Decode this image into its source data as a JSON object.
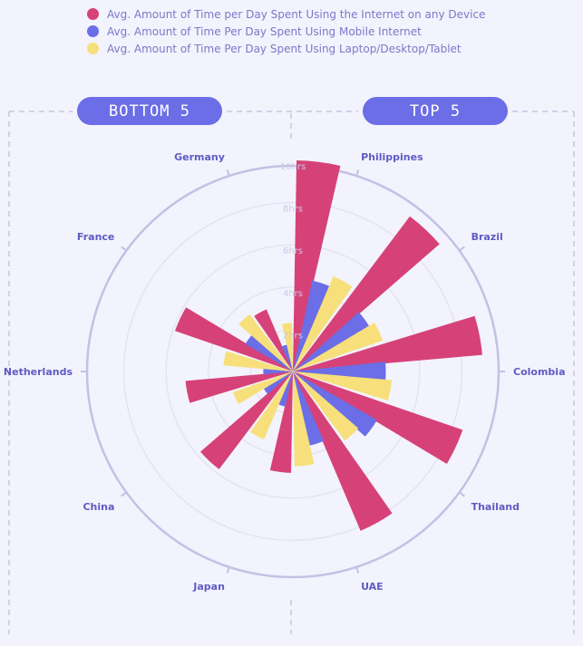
{
  "legend": [
    {
      "label": "Avg. Amount of Time per Day Spent Using the Internet on any Device",
      "color": "#d64278"
    },
    {
      "label": "Avg. Amount of Time Per Day Spent Using Mobile Internet",
      "color": "#6b6ee6"
    },
    {
      "label": "Avg. Amount of Time Per Day Spent Using Laptop/Desktop/Tablet",
      "color": "#f7e07c"
    }
  ],
  "groups": {
    "bottom_label": "BOTTOM 5",
    "top_label": "TOP 5"
  },
  "chart_data": {
    "type": "radial-bar",
    "rlim": [
      0,
      10
    ],
    "r_ticks": [
      "2hrs",
      "4hrs",
      "6hrs",
      "8hrs",
      "10hrs"
    ],
    "grid": true,
    "categories": [
      "Philippines",
      "Brazil",
      "Colombia",
      "Thailand",
      "UAE",
      "Japan",
      "China",
      "Netherlands",
      "France",
      "Germany"
    ],
    "series": [
      {
        "name": "Avg. Amount of Time per Day Spent Using the Internet on any Device",
        "color": "#d64278",
        "values": [
          10.0,
          9.2,
          9.0,
          8.5,
          8.2,
          4.8,
          5.8,
          5.1,
          5.9,
          3.2
        ]
      },
      {
        "name": "Avg. Amount of Time Per Day Spent Using Mobile Internet",
        "color": "#6b6ee6",
        "values": [
          4.4,
          4.2,
          4.4,
          4.6,
          3.6,
          1.7,
          1.6,
          1.4,
          2.6,
          1.3
        ]
      },
      {
        "name": "Avg. Amount of Time Per Day Spent Using Laptop/Desktop/Tablet",
        "color": "#f7e07c",
        "values": [
          4.9,
          4.5,
          4.7,
          4.1,
          4.5,
          3.5,
          3.0,
          3.3,
          3.4,
          2.3
        ]
      }
    ]
  }
}
